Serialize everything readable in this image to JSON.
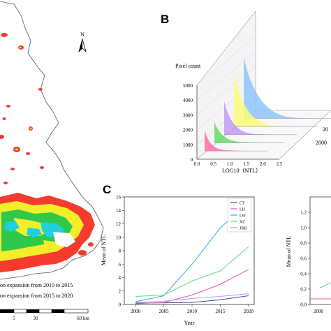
{
  "panel_b": {
    "letter": "B",
    "y_axis_title": "Pixel count",
    "y_ticks": [
      "0",
      "1000",
      "2000",
      "3000",
      "4000",
      "5000"
    ],
    "x_ticks": [
      "0.0",
      "0.5",
      "1.0",
      "1.5",
      "2.0",
      "2.5"
    ],
    "x_axis_title": "LOG10（NTL）",
    "depth_ticks": [
      "2000",
      "20"
    ],
    "ridge_colors": [
      "#ff6fa8",
      "#66dd66",
      "#c39af0",
      "#fbfb7a",
      "#8fc4ff"
    ]
  },
  "panel_c": {
    "letter": "C",
    "y_axis_title": "Mean of NTL",
    "x_axis_title": "Year",
    "x_ticks": [
      "2000",
      "2005",
      "2010",
      "2015",
      "2020"
    ],
    "y_ticks": [
      "0",
      "2",
      "4",
      "6",
      "8",
      "10",
      "12",
      "14",
      "16"
    ]
  },
  "panel_d_partial": {
    "y_axis_title": "Mean of NTL",
    "y_ticks": [
      "0.0",
      "0.2",
      "0.4",
      "0.6",
      "0.8",
      "1.0",
      "1.2"
    ],
    "x_tick": "2000"
  },
  "map_panel": {
    "north_label": "N",
    "caption_1": "on expansion from 2010 to 2015",
    "caption_2": "on expansion from 2015 to 2020",
    "scale_labels": [
      "5",
      "30",
      "60 km"
    ]
  },
  "chart_data": [
    {
      "type": "line",
      "title": "",
      "xlabel": "Year",
      "ylabel": "Mean of NTL",
      "x": [
        2000,
        2005,
        2010,
        2015,
        2020
      ],
      "xlim": [
        1998,
        2021
      ],
      "ylim": [
        0,
        16
      ],
      "legend_position": "top-right",
      "series": [
        {
          "name": "CT",
          "color": "#4a4a9a",
          "values": [
            0.2,
            0.25,
            0.3,
            0.7,
            1.3
          ]
        },
        {
          "name": "LH",
          "color": "#f04fb0",
          "values": [
            0.1,
            0.3,
            1.4,
            3.0,
            5.2
          ]
        },
        {
          "name": "LW",
          "color": "#3fa7e0",
          "values": [
            0.4,
            1.3,
            6.0,
            11.4,
            15.1
          ]
        },
        {
          "name": "XC",
          "color": "#55e07a",
          "values": [
            1.2,
            1.4,
            3.5,
            5.0,
            8.6
          ]
        },
        {
          "name": "JRB",
          "color": "#b19ae6",
          "values": [
            0.3,
            0.5,
            0.9,
            1.2,
            1.6
          ]
        }
      ]
    }
  ]
}
